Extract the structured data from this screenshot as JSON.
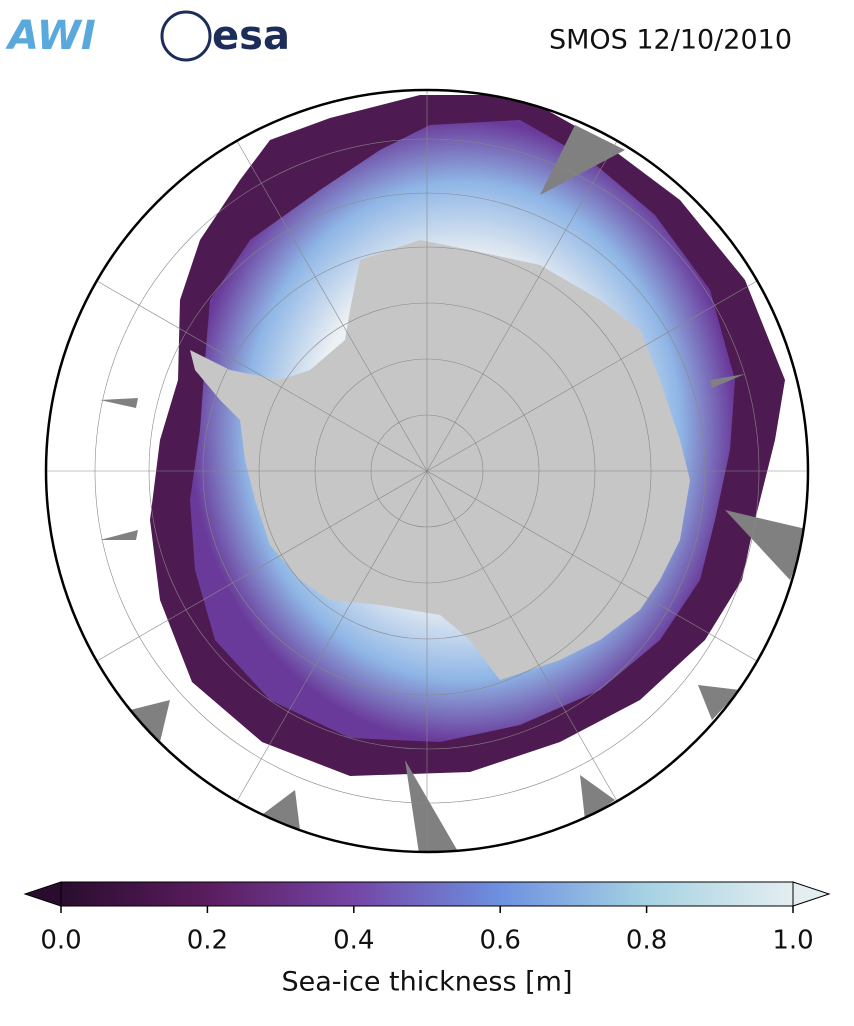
{
  "logos": [
    "AWI",
    "esa"
  ],
  "title": "SMOS 12/10/2010",
  "colorbar": {
    "label": "Sea-ice thickness [m]",
    "lim": [
      0,
      1
    ],
    "ticks": [
      {
        "value": 0,
        "label": "0.0"
      },
      0.2,
      0.4,
      0.6,
      0.8,
      {
        "value": 1,
        "label": "1.0"
      }
    ]
  }
}
